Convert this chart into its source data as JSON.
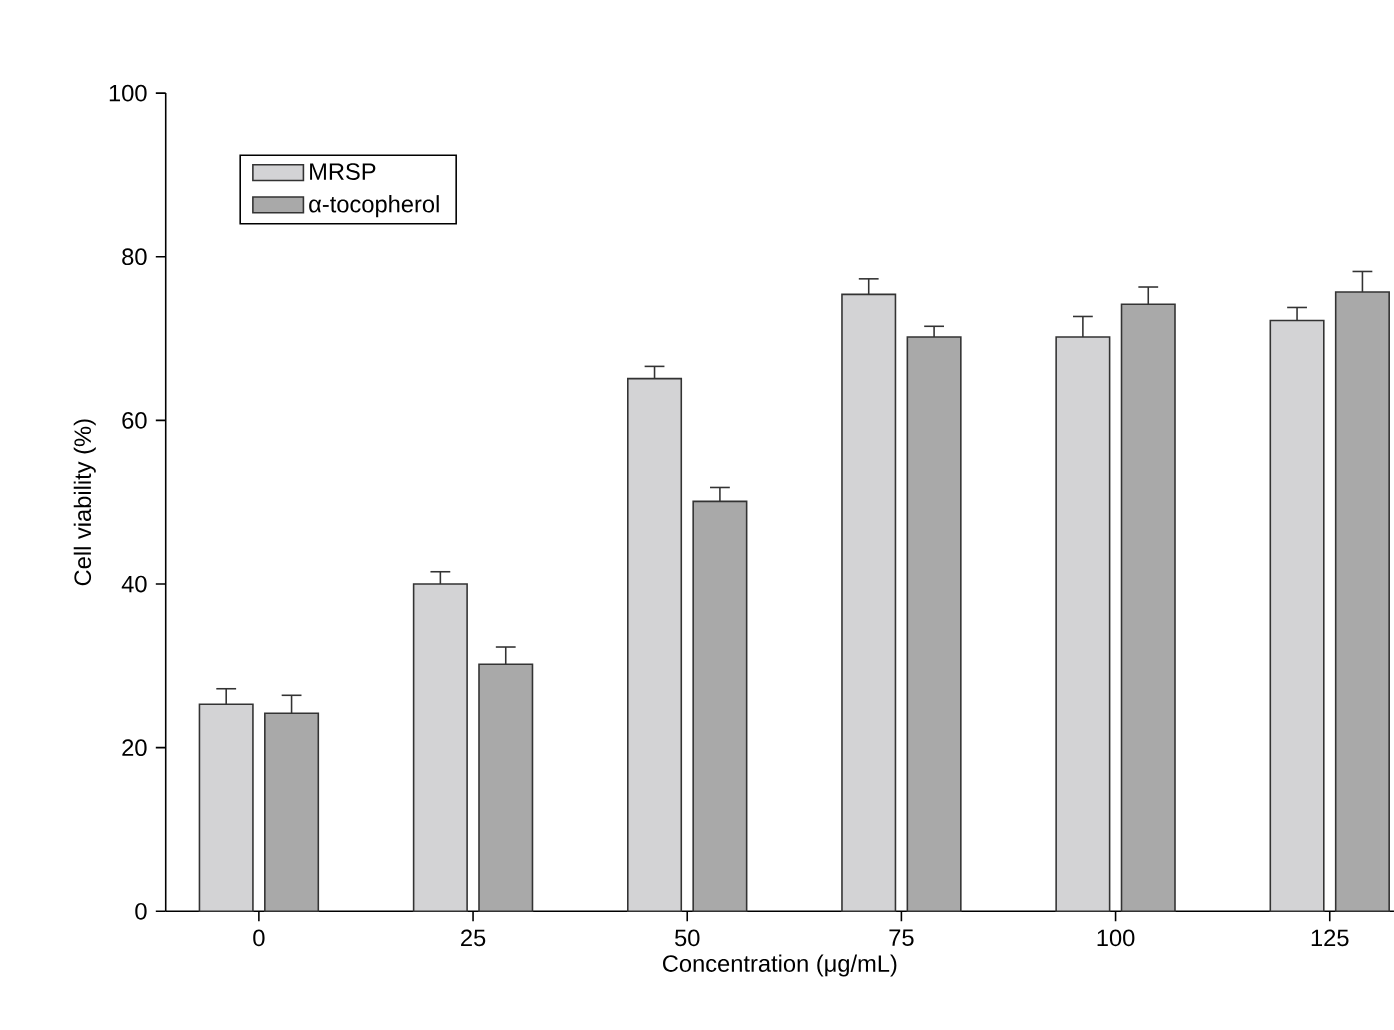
{
  "chart_data": {
    "type": "bar",
    "xlabel": "Concentration (μg/mL)",
    "ylabel": "Cell viability (%)",
    "categories": [
      "0",
      "25",
      "50",
      "75",
      "100",
      "125"
    ],
    "series": [
      {
        "name": "MRSP",
        "color": "#d3d3d5",
        "values": [
          25.3,
          40.0,
          65.1,
          75.4,
          70.2,
          72.2
        ],
        "errors": [
          1.9,
          1.5,
          1.5,
          1.9,
          2.5,
          1.6
        ]
      },
      {
        "name": "α-tocopherol",
        "color": "#a9a9a9",
        "values": [
          24.2,
          30.2,
          50.1,
          70.2,
          74.2,
          75.7
        ],
        "errors": [
          2.2,
          2.1,
          1.7,
          1.3,
          2.1,
          2.5
        ]
      }
    ],
    "ylim": [
      0,
      100
    ],
    "yticks": [
      0,
      20,
      40,
      60,
      80,
      100
    ],
    "legend": "top left",
    "grid": false
  }
}
